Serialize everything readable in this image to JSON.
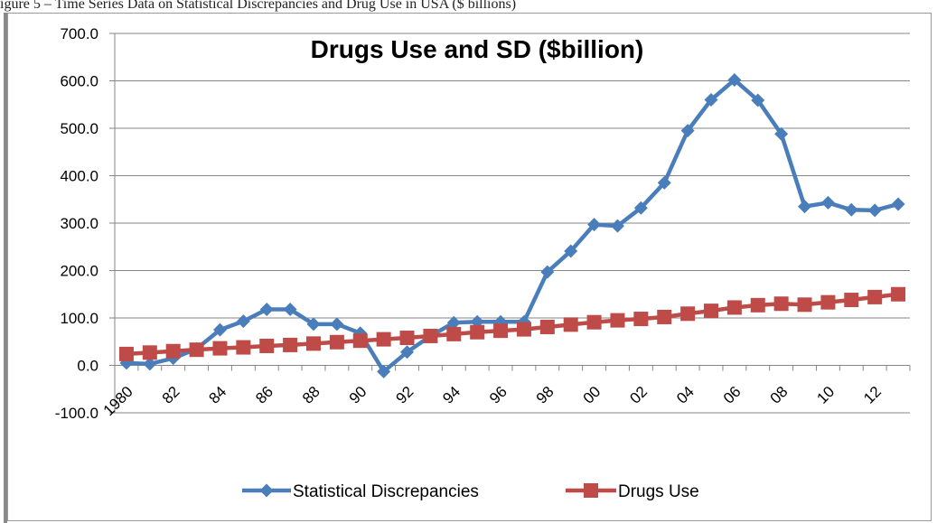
{
  "caption": "igure 5 – Time Series Data on Statistical Discrepancies and Drug Use in USA ($ billions)",
  "chart_data": {
    "type": "line",
    "title": "Drugs Use and SD ($billion)",
    "xlabel": "",
    "ylabel": "",
    "ylim": [
      -100,
      700
    ],
    "y_ticks": [
      "700.0",
      "600.0",
      "500.0",
      "400.0",
      "300.0",
      "200.0",
      "100.0",
      "0.0",
      "-100.0"
    ],
    "x": [
      1980,
      1981,
      1982,
      1983,
      1984,
      1985,
      1986,
      1987,
      1988,
      1989,
      1990,
      1991,
      1992,
      1993,
      1994,
      1995,
      1996,
      1997,
      1998,
      1999,
      2000,
      2001,
      2002,
      2003,
      2004,
      2005,
      2006,
      2007,
      2008,
      2009,
      2010,
      2011,
      2012,
      2013
    ],
    "x_tick_labels": [
      "1980",
      "82",
      "84",
      "86",
      "88",
      "90",
      "92",
      "94",
      "96",
      "98",
      "00",
      "02",
      "04",
      "06",
      "08",
      "10",
      "12"
    ],
    "grid": "horizontal",
    "legend_position": "bottom",
    "series": [
      {
        "name": "Statistical Discrepancies",
        "color": "#4a7ebb",
        "marker": "diamond",
        "values": [
          5,
          3,
          15,
          35,
          75,
          93,
          118,
          118,
          87,
          87,
          68,
          -13,
          28,
          62,
          90,
          92,
          92,
          92,
          197,
          241,
          297,
          294,
          332,
          385,
          495,
          560,
          602,
          559,
          488,
          335,
          343,
          328,
          327,
          340
        ]
      },
      {
        "name": "Drugs Use",
        "color": "#be4b48",
        "marker": "square",
        "values": [
          24,
          27,
          30,
          33,
          36,
          38,
          41,
          43,
          46,
          49,
          52,
          55,
          58,
          62,
          66,
          70,
          73,
          76,
          81,
          86,
          91,
          95,
          98,
          102,
          109,
          115,
          122,
          127,
          130,
          128,
          133,
          138,
          144,
          150
        ]
      }
    ]
  }
}
